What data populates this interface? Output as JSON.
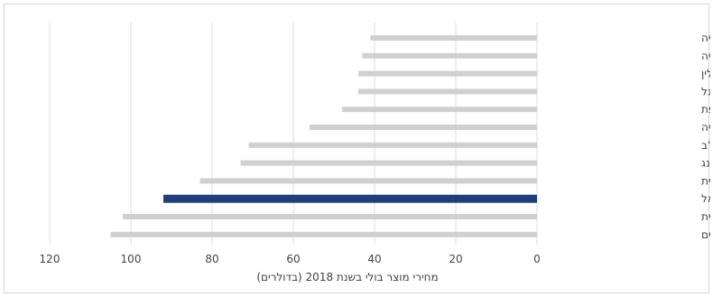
{
  "chart_data": {
    "type": "bar",
    "orientation": "horizontal",
    "x_direction": "reversed",
    "xlabel": "מחירי מוצר בולי בשנת 2018 (בדולרים)",
    "ylabel": "",
    "title": "",
    "xlim": [
      0,
      120
    ],
    "xticks": [
      0,
      20,
      40,
      60,
      80,
      100,
      120
    ],
    "grid": true,
    "legend": "none",
    "categories": [
      "סקנדינביה",
      "טורקיה",
      "פולין",
      "פורטוגל",
      "צרפת",
      "בריטניה",
      "ארה\"ב",
      "הונג קונג",
      "ערב הסעודית",
      "ישראל",
      "הרפובליקה הדומיניקנית",
      "מצרים"
    ],
    "values": [
      41,
      43,
      44,
      44,
      48,
      56,
      71,
      73,
      83,
      92,
      102,
      105
    ],
    "colors": {
      "default_bar": "#d0d0d0",
      "highlight_bar": "#1f3f78",
      "grid": "#dcdcdc"
    },
    "highlight_category": "ישראל"
  }
}
